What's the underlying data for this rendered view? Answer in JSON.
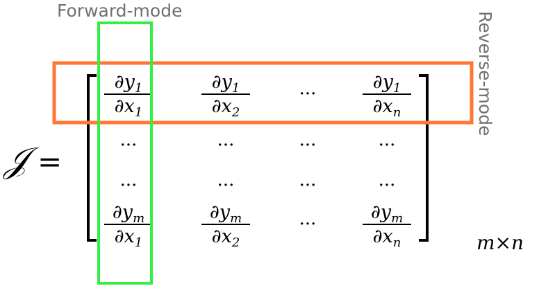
{
  "labels": {
    "forward_mode": "Forward-mode",
    "reverse_mode": "Reverse-mode",
    "jacobian_symbol": "𝒥",
    "equals": "=",
    "dimensions": "m×n"
  },
  "matrix": {
    "rows": [
      [
        {
          "type": "frac",
          "num_var": "∂y",
          "num_sub": "1",
          "den_var": "∂x",
          "den_sub": "1"
        },
        {
          "type": "frac",
          "num_var": "∂y",
          "num_sub": "1",
          "den_var": "∂x",
          "den_sub": "2"
        },
        {
          "type": "dots",
          "text": "···"
        },
        {
          "type": "frac",
          "num_var": "∂y",
          "num_sub": "1",
          "den_var": "∂x",
          "den_sub": "n"
        }
      ],
      [
        {
          "type": "dots",
          "text": "···"
        },
        {
          "type": "dots",
          "text": "···"
        },
        {
          "type": "dots",
          "text": "···"
        },
        {
          "type": "dots",
          "text": "···"
        }
      ],
      [
        {
          "type": "dots",
          "text": "···"
        },
        {
          "type": "dots",
          "text": "···"
        },
        {
          "type": "dots",
          "text": "···"
        },
        {
          "type": "dots",
          "text": "···"
        }
      ],
      [
        {
          "type": "frac",
          "num_var": "∂y",
          "num_sub": "m",
          "den_var": "∂x",
          "den_sub": "1"
        },
        {
          "type": "frac",
          "num_var": "∂y",
          "num_sub": "m",
          "den_var": "∂x",
          "den_sub": "2"
        },
        {
          "type": "dots",
          "text": "···"
        },
        {
          "type": "frac",
          "num_var": "∂y",
          "num_sub": "m",
          "den_var": "∂x",
          "den_sub": "n"
        }
      ]
    ]
  },
  "colors": {
    "forward_box": "#33ee44",
    "reverse_box": "#ff7733",
    "label_text": "#707070"
  }
}
